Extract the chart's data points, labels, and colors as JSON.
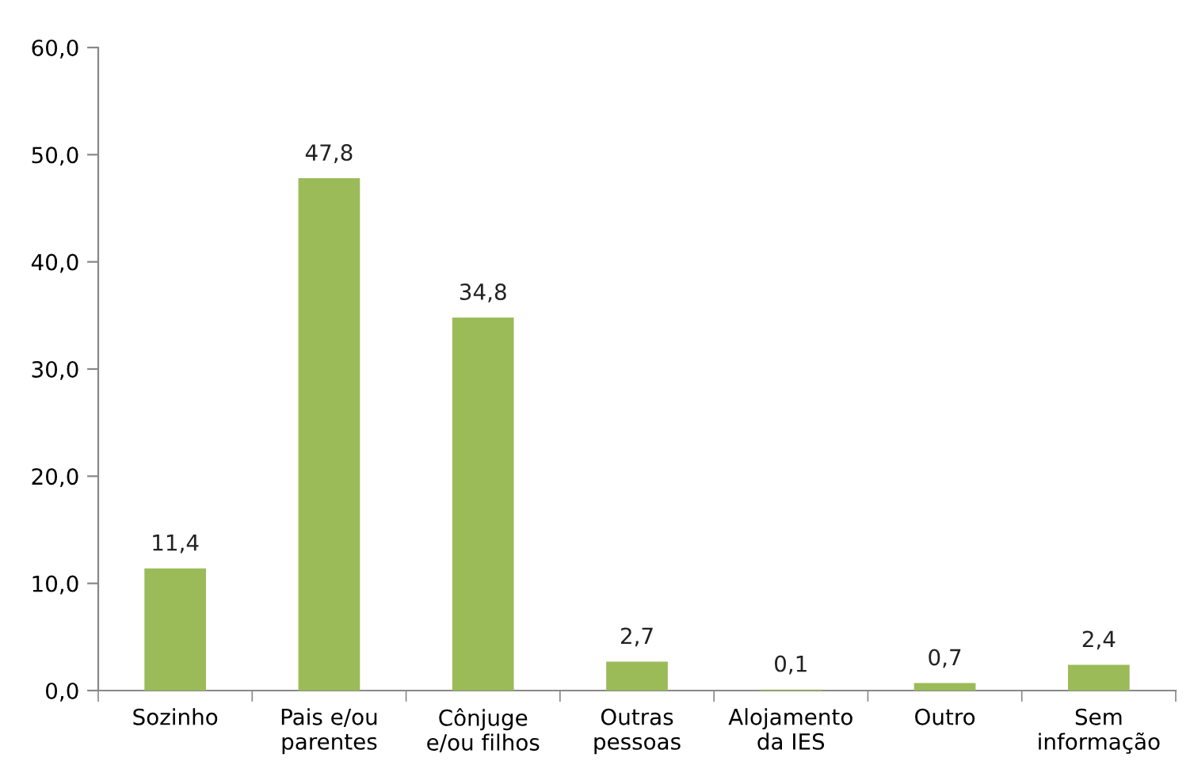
{
  "chart_data": {
    "type": "bar",
    "categories": [
      "Sozinho",
      "Pais e/ou\nparentes",
      "Cônjuge\ne/ou filhos",
      "Outras\npessoas",
      "Alojamento\nda IES",
      "Outro",
      "Sem\ninformação"
    ],
    "values": [
      11.4,
      47.8,
      34.8,
      2.7,
      0.1,
      0.7,
      2.4
    ],
    "value_labels": [
      "11,4",
      "47,8",
      "34,8",
      "2,7",
      "0,1",
      "0,7",
      "2,4"
    ],
    "color": "#9bbb59",
    "ylim": [
      0,
      60
    ],
    "yticks": [
      {
        "value": 0,
        "label": "0,0"
      },
      {
        "value": 10,
        "label": "10,0"
      },
      {
        "value": 20,
        "label": "20,0"
      },
      {
        "value": 30,
        "label": "30,0"
      },
      {
        "value": 40,
        "label": "40,0"
      },
      {
        "value": 50,
        "label": "50,0"
      },
      {
        "value": 60,
        "label": "60,0"
      }
    ],
    "grid": false,
    "legend": false
  }
}
